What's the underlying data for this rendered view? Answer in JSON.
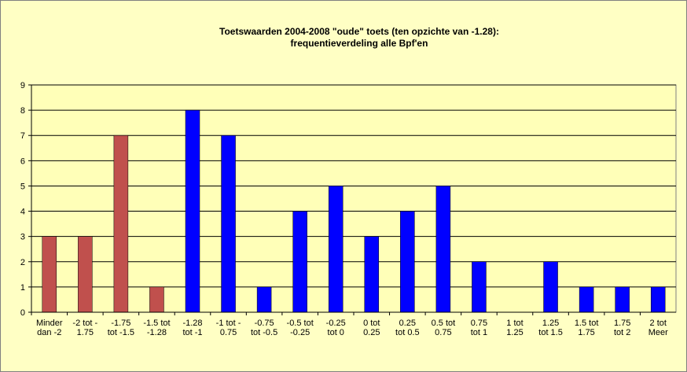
{
  "chart_data": {
    "type": "bar",
    "title": "Toetswaarden 2004-2008  \"oude\" toets (ten opzichte van -1.28):\nfrequentieverdeling alle Bpf'en",
    "categories": [
      "Minder\ndan -2",
      "-2 tot -\n1.75",
      "-1.75\ntot -1.5",
      "-1.5 tot\n-1.28",
      "-1.28\ntot -1",
      "-1 tot -\n0.75",
      "-0.75\ntot -0.5",
      "-0.5 tot\n-0.25",
      "-0.25\ntot 0",
      "0 tot\n0.25",
      "0.25\ntot 0.5",
      "0.5 tot\n0.75",
      "0.75\ntot 1",
      "1 tot\n1.25",
      "1.25\ntot 1.5",
      "1.5 tot\n1.75",
      "1.75\ntot 2",
      "2 tot\nMeer"
    ],
    "values": [
      3,
      3,
      7,
      1,
      8,
      7,
      1,
      4,
      5,
      3,
      4,
      5,
      2,
      0,
      2,
      1,
      1,
      1
    ],
    "colors": [
      "#c0504d",
      "#c0504d",
      "#c0504d",
      "#c0504d",
      "#0000ff",
      "#0000ff",
      "#0000ff",
      "#0000ff",
      "#0000ff",
      "#0000ff",
      "#0000ff",
      "#0000ff",
      "#0000ff",
      "#0000ff",
      "#0000ff",
      "#0000ff",
      "#0000ff",
      "#0000ff"
    ],
    "ylim": [
      0,
      9
    ],
    "yticks": [
      0,
      1,
      2,
      3,
      4,
      5,
      6,
      7,
      8,
      9
    ],
    "grid": true
  }
}
